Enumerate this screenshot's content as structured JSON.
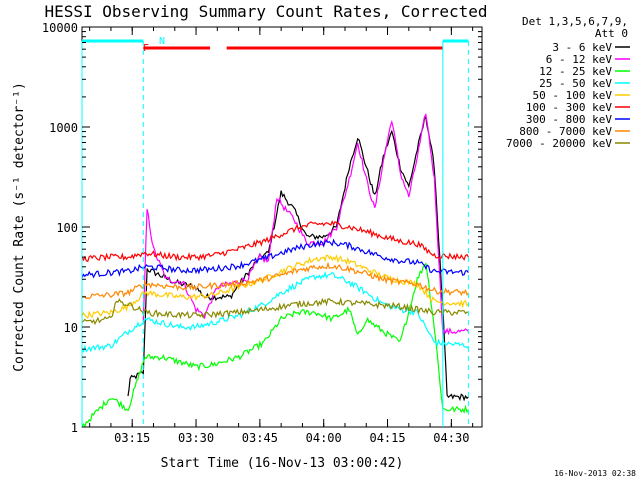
{
  "chart_data": {
    "type": "line",
    "title": "HESSI Observing Summary Count Rates, Corrected",
    "xlabel": "Start Time (16-Nov-13 03:00:42)",
    "ylabel": "Corrected Count Rate (s⁻¹ detector⁻¹)",
    "yscale": "log",
    "ylim": [
      1,
      10000
    ],
    "xlim_minutes": [
      3.2,
      97.2
    ],
    "x_tick_labels": [
      "03:15",
      "03:30",
      "03:45",
      "04:00",
      "04:15",
      "04:30"
    ],
    "y_tick_labels": [
      "1",
      "10",
      "100",
      "1000",
      "10000"
    ],
    "legend_header": [
      "Det 1,3,5,6,7,9,",
      "Att 0"
    ],
    "legend_placement": "right",
    "footer_date": "16-Nov-2013 02:38",
    "flag_labels": {
      "F": "F",
      "N": "N"
    },
    "series": [
      {
        "name": "3 - 6 keV",
        "color": "#000000",
        "points": [
          [
            14,
            2
          ],
          [
            14.5,
            3
          ],
          [
            17.6,
            3.5
          ],
          [
            18.5,
            38
          ],
          [
            25,
            28
          ],
          [
            30,
            25
          ],
          [
            32,
            20
          ],
          [
            38,
            20
          ],
          [
            45,
            50
          ],
          [
            47,
            55
          ],
          [
            50,
            220
          ],
          [
            53,
            150
          ],
          [
            56,
            80
          ],
          [
            60,
            80
          ],
          [
            63,
            100
          ],
          [
            66,
            400
          ],
          [
            68,
            800
          ],
          [
            70,
            400
          ],
          [
            72,
            200
          ],
          [
            74,
            500
          ],
          [
            76,
            900
          ],
          [
            78,
            400
          ],
          [
            80,
            250
          ],
          [
            82,
            600
          ],
          [
            84,
            1300
          ],
          [
            86,
            400
          ],
          [
            88,
            15
          ],
          [
            89,
            2
          ],
          [
            94,
            2
          ]
        ]
      },
      {
        "name": "6 - 12 keV",
        "color": "#ff00ff",
        "points": [
          [
            17.6,
            11
          ],
          [
            18.5,
            150
          ],
          [
            20,
            60
          ],
          [
            23,
            30
          ],
          [
            27,
            28
          ],
          [
            30,
            15
          ],
          [
            32,
            13
          ],
          [
            35,
            25
          ],
          [
            42,
            30
          ],
          [
            45,
            50
          ],
          [
            47,
            45
          ],
          [
            49,
            200
          ],
          [
            51,
            150
          ],
          [
            53,
            120
          ],
          [
            56,
            70
          ],
          [
            60,
            70
          ],
          [
            63,
            100
          ],
          [
            66,
            300
          ],
          [
            68,
            700
          ],
          [
            70,
            300
          ],
          [
            72,
            150
          ],
          [
            74,
            450
          ],
          [
            76,
            1200
          ],
          [
            78,
            350
          ],
          [
            80,
            200
          ],
          [
            82,
            500
          ],
          [
            84,
            1400
          ],
          [
            86,
            300
          ],
          [
            88,
            9
          ],
          [
            94,
            9
          ]
        ]
      },
      {
        "name": "12 - 25 keV",
        "color": "#00ff00",
        "points": [
          [
            3.2,
            1
          ],
          [
            10,
            2
          ],
          [
            14,
            1.5
          ],
          [
            18,
            5
          ],
          [
            22,
            5
          ],
          [
            26,
            4.5
          ],
          [
            30,
            4
          ],
          [
            34,
            4.2
          ],
          [
            40,
            5
          ],
          [
            46,
            7
          ],
          [
            50,
            12
          ],
          [
            54,
            14
          ],
          [
            58,
            14
          ],
          [
            62,
            12
          ],
          [
            66,
            15
          ],
          [
            68,
            8
          ],
          [
            70,
            12
          ],
          [
            74,
            9
          ],
          [
            78,
            7
          ],
          [
            82,
            30
          ],
          [
            84,
            45
          ],
          [
            86,
            10
          ],
          [
            88,
            1.5
          ],
          [
            94,
            1.5
          ]
        ]
      },
      {
        "name": "25 - 50 keV",
        "color": "#00ffff",
        "points": [
          [
            3.2,
            6
          ],
          [
            10,
            6.5
          ],
          [
            14,
            9
          ],
          [
            18,
            12
          ],
          [
            22,
            11
          ],
          [
            26,
            10
          ],
          [
            30,
            10
          ],
          [
            34,
            11
          ],
          [
            40,
            13
          ],
          [
            46,
            17
          ],
          [
            50,
            22
          ],
          [
            54,
            27
          ],
          [
            58,
            32
          ],
          [
            62,
            33
          ],
          [
            66,
            28
          ],
          [
            70,
            22
          ],
          [
            74,
            17
          ],
          [
            78,
            15
          ],
          [
            82,
            14
          ],
          [
            86,
            7
          ],
          [
            94,
            6.5
          ]
        ]
      },
      {
        "name": "50 - 100 keV",
        "color": "#ffcc00",
        "points": [
          [
            3.2,
            13
          ],
          [
            10,
            14
          ],
          [
            14,
            16
          ],
          [
            18,
            22
          ],
          [
            22,
            21
          ],
          [
            26,
            20
          ],
          [
            30,
            20
          ],
          [
            34,
            21
          ],
          [
            40,
            25
          ],
          [
            46,
            30
          ],
          [
            50,
            36
          ],
          [
            54,
            42
          ],
          [
            58,
            48
          ],
          [
            62,
            50
          ],
          [
            66,
            45
          ],
          [
            70,
            38
          ],
          [
            74,
            32
          ],
          [
            78,
            29
          ],
          [
            82,
            27
          ],
          [
            86,
            18
          ],
          [
            94,
            17
          ]
        ]
      },
      {
        "name": "100 - 300 keV",
        "color": "#ff0000",
        "points": [
          [
            3.2,
            48
          ],
          [
            10,
            50
          ],
          [
            14,
            50
          ],
          [
            18,
            55
          ],
          [
            22,
            52
          ],
          [
            26,
            50
          ],
          [
            30,
            50
          ],
          [
            34,
            52
          ],
          [
            40,
            60
          ],
          [
            46,
            72
          ],
          [
            50,
            85
          ],
          [
            54,
            98
          ],
          [
            58,
            107
          ],
          [
            62,
            108
          ],
          [
            66,
            100
          ],
          [
            70,
            90
          ],
          [
            74,
            80
          ],
          [
            78,
            72
          ],
          [
            82,
            68
          ],
          [
            86,
            52
          ],
          [
            94,
            50
          ]
        ]
      },
      {
        "name": "300 - 800 keV",
        "color": "#0000ff",
        "points": [
          [
            3.2,
            33
          ],
          [
            10,
            35
          ],
          [
            14,
            36
          ],
          [
            18,
            40
          ],
          [
            22,
            39
          ],
          [
            26,
            37
          ],
          [
            30,
            37
          ],
          [
            34,
            38
          ],
          [
            40,
            41
          ],
          [
            46,
            48
          ],
          [
            50,
            55
          ],
          [
            54,
            62
          ],
          [
            58,
            68
          ],
          [
            62,
            70
          ],
          [
            66,
            65
          ],
          [
            70,
            57
          ],
          [
            74,
            50
          ],
          [
            78,
            46
          ],
          [
            82,
            44
          ],
          [
            86,
            36
          ],
          [
            94,
            35
          ]
        ]
      },
      {
        "name": "800 - 7000 keV",
        "color": "#ff8800",
        "points": [
          [
            3.2,
            20
          ],
          [
            10,
            21
          ],
          [
            14,
            22
          ],
          [
            18,
            27
          ],
          [
            22,
            26
          ],
          [
            26,
            25
          ],
          [
            30,
            25
          ],
          [
            34,
            26
          ],
          [
            40,
            27
          ],
          [
            46,
            30
          ],
          [
            50,
            33
          ],
          [
            54,
            37
          ],
          [
            58,
            40
          ],
          [
            62,
            41
          ],
          [
            66,
            38
          ],
          [
            70,
            34
          ],
          [
            74,
            30
          ],
          [
            78,
            28
          ],
          [
            82,
            27
          ],
          [
            86,
            23
          ],
          [
            94,
            22
          ]
        ]
      },
      {
        "name": "7000 - 20000 keV",
        "color": "#888800",
        "points": [
          [
            3.2,
            11
          ],
          [
            10,
            12
          ],
          [
            11,
            18
          ],
          [
            14,
            17
          ],
          [
            18,
            14
          ],
          [
            22,
            13.5
          ],
          [
            30,
            13
          ],
          [
            40,
            14
          ],
          [
            46,
            15
          ],
          [
            54,
            17
          ],
          [
            62,
            18
          ],
          [
            70,
            17
          ],
          [
            78,
            16
          ],
          [
            86,
            14
          ],
          [
            94,
            14
          ]
        ]
      }
    ],
    "flag_bars": [
      {
        "color": "#00ffff",
        "ranges": [
          [
            3.2,
            17.6
          ],
          [
            88,
            94
          ]
        ]
      },
      {
        "color": "#ff0000",
        "ranges": [
          [
            17.6,
            33.3
          ],
          [
            37.2,
            88
          ]
        ]
      }
    ],
    "vertical_markers": {
      "color": "#00ffff",
      "solid": [
        3.2,
        88
      ],
      "dashed": [
        17.6,
        94
      ]
    }
  }
}
